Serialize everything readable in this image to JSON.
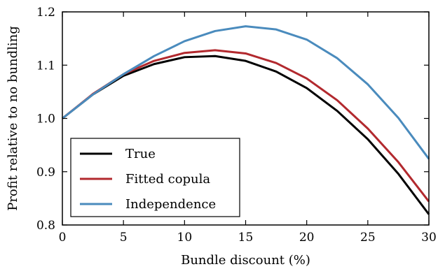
{
  "chart_data": {
    "type": "line",
    "xlabel": "Bundle discount (%)",
    "ylabel": "Profit relative to no bundling",
    "xlim": [
      0,
      30
    ],
    "ylim": [
      0.8,
      1.2
    ],
    "xticks": [
      0,
      5,
      10,
      15,
      20,
      25,
      30
    ],
    "yticks": [
      0.8,
      0.9,
      1.0,
      1.1,
      1.2
    ],
    "xtick_labels": [
      "0",
      "5",
      "10",
      "15",
      "20",
      "25",
      "30"
    ],
    "ytick_labels": [
      "0.8",
      "0.9",
      "1.0",
      "1.1",
      "1.2"
    ],
    "grid": false,
    "legend_position": "bottom-left",
    "x": [
      0,
      2.5,
      5,
      7.5,
      10,
      12.5,
      15,
      17.5,
      20,
      22.5,
      25,
      27.5,
      30
    ],
    "series": [
      {
        "name": "True",
        "color": "#000000",
        "values": [
          1.0,
          1.045,
          1.08,
          1.102,
          1.115,
          1.117,
          1.108,
          1.088,
          1.057,
          1.014,
          0.961,
          0.896,
          0.82
        ]
      },
      {
        "name": "Fitted copula",
        "color": "#b2292e",
        "values": [
          1.0,
          1.046,
          1.083,
          1.108,
          1.123,
          1.128,
          1.122,
          1.104,
          1.075,
          1.034,
          0.981,
          0.918,
          0.844
        ]
      },
      {
        "name": "Independence",
        "color": "#4a8bbd",
        "values": [
          1.0,
          1.045,
          1.083,
          1.117,
          1.145,
          1.164,
          1.173,
          1.167,
          1.148,
          1.113,
          1.064,
          1.001,
          0.924
        ]
      }
    ]
  }
}
